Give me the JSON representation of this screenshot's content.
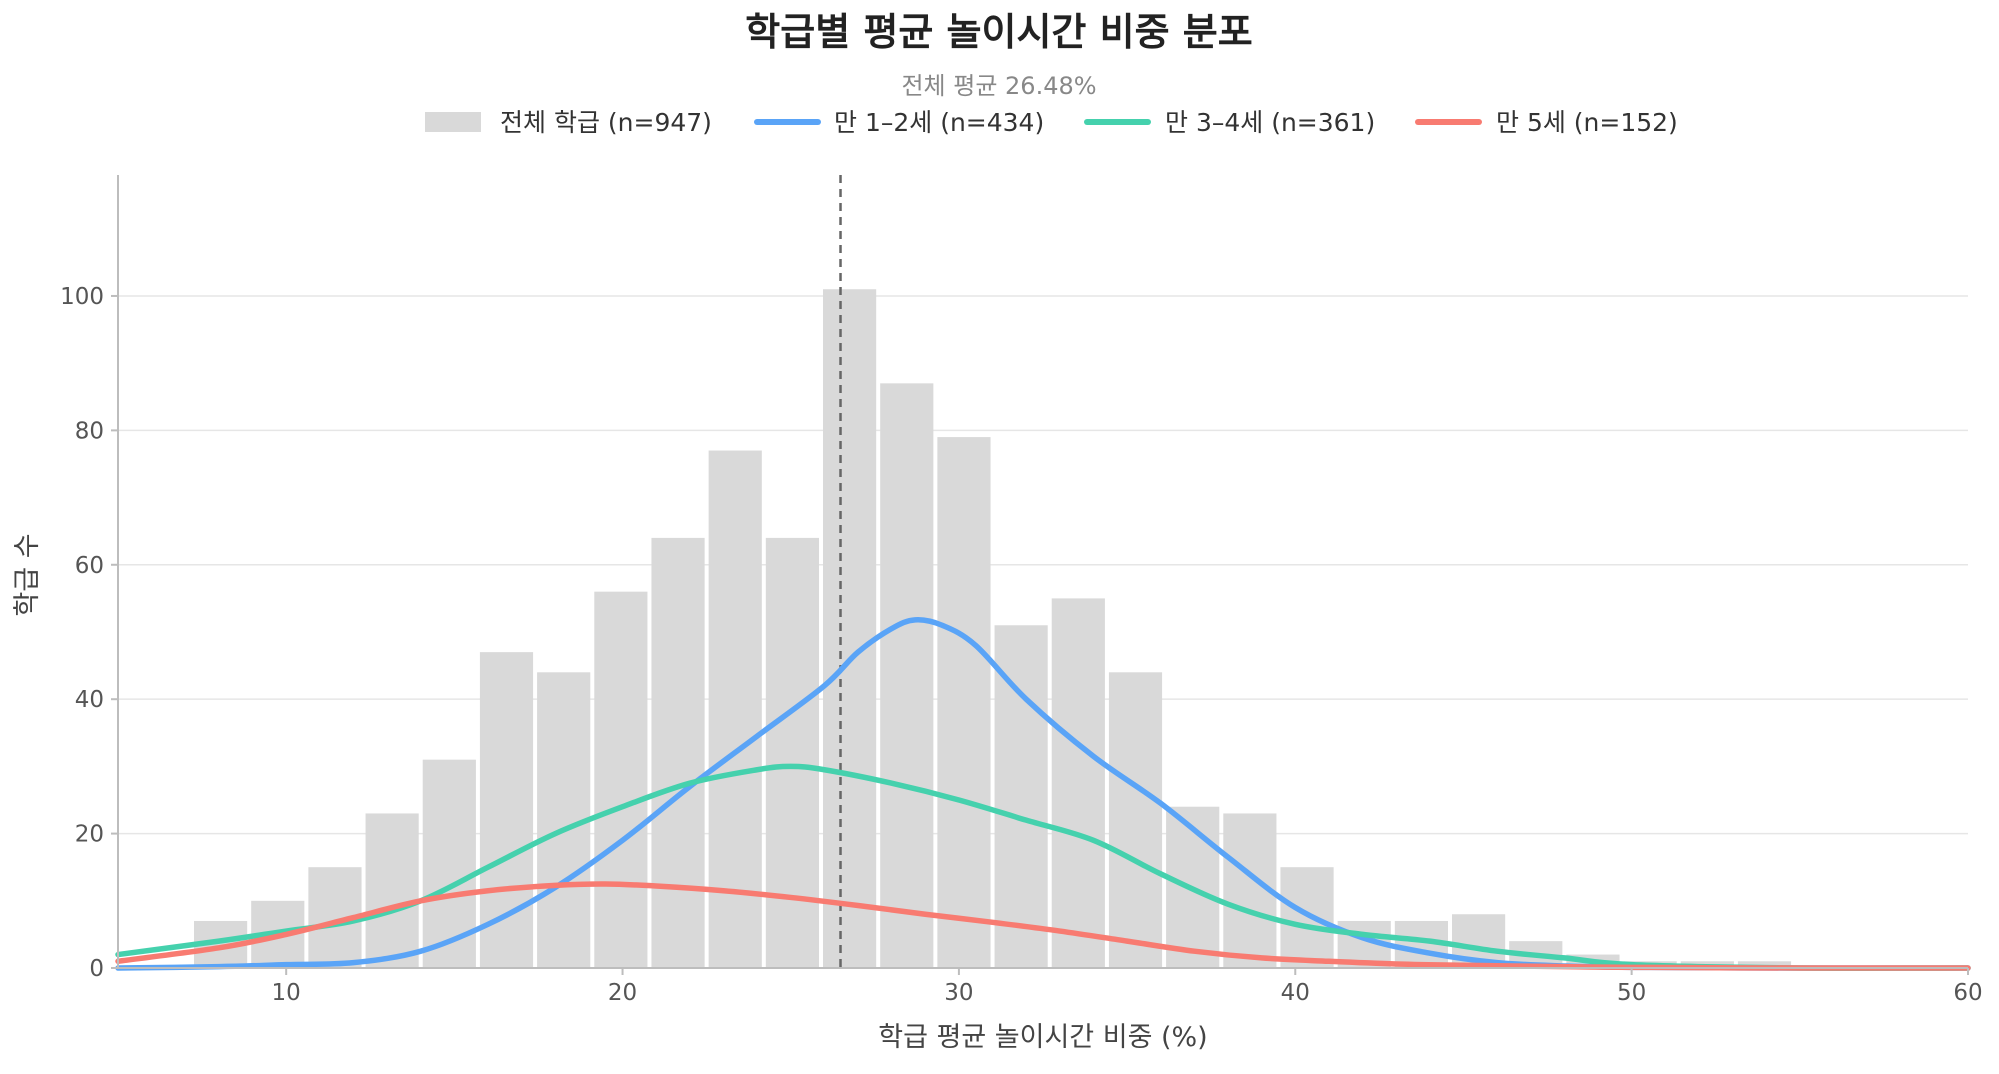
{
  "chart_data": {
    "type": "bar",
    "title": "학급별 평균 놀이시간 비중 분포",
    "subtitle": "전체 평균 26.48%",
    "xlabel": "학급 평균 놀이시간 비중 (%)",
    "ylabel": "학급 수",
    "xlim": [
      5,
      60
    ],
    "ylim": [
      0,
      118
    ],
    "xticks": [
      10,
      20,
      30,
      40,
      50,
      60
    ],
    "yticks": [
      0,
      20,
      40,
      60,
      80,
      100
    ],
    "grid": "horizontal",
    "legend_position": "top-center",
    "mean_line": 26.48,
    "histogram": {
      "name": "전체 학급 (n=947)",
      "color": "#d9d9d9",
      "bin_width": 1.7,
      "bins": [
        {
          "x_start": 7.2,
          "count": 7
        },
        {
          "x_start": 8.9,
          "count": 10
        },
        {
          "x_start": 10.6,
          "count": 15
        },
        {
          "x_start": 12.3,
          "count": 23
        },
        {
          "x_start": 14.0,
          "count": 31
        },
        {
          "x_start": 15.7,
          "count": 47
        },
        {
          "x_start": 17.4,
          "count": 44
        },
        {
          "x_start": 19.1,
          "count": 56
        },
        {
          "x_start": 20.8,
          "count": 64
        },
        {
          "x_start": 22.5,
          "count": 77
        },
        {
          "x_start": 24.2,
          "count": 64
        },
        {
          "x_start": 25.9,
          "count": 101
        },
        {
          "x_start": 27.6,
          "count": 87
        },
        {
          "x_start": 29.3,
          "count": 79
        },
        {
          "x_start": 31.0,
          "count": 51
        },
        {
          "x_start": 32.7,
          "count": 55
        },
        {
          "x_start": 34.4,
          "count": 44
        },
        {
          "x_start": 36.1,
          "count": 24
        },
        {
          "x_start": 37.8,
          "count": 23
        },
        {
          "x_start": 39.5,
          "count": 15
        },
        {
          "x_start": 41.2,
          "count": 7
        },
        {
          "x_start": 42.9,
          "count": 7
        },
        {
          "x_start": 44.6,
          "count": 8
        },
        {
          "x_start": 46.3,
          "count": 4
        },
        {
          "x_start": 48.0,
          "count": 2
        },
        {
          "x_start": 49.7,
          "count": 1
        },
        {
          "x_start": 51.4,
          "count": 1
        },
        {
          "x_start": 53.1,
          "count": 1
        }
      ]
    },
    "series": [
      {
        "name": "만 1–2세 (n=434)",
        "type": "line",
        "color": "#5aa4f7",
        "x": [
          5,
          8,
          10,
          12,
          14,
          16,
          18,
          20,
          22,
          24,
          26,
          27,
          28,
          28.7,
          29.5,
          30.5,
          32,
          34,
          36,
          38,
          40,
          42,
          44,
          46,
          48,
          50,
          55,
          60
        ],
        "y": [
          0,
          0.2,
          0.5,
          0.8,
          2.5,
          6.5,
          12,
          19,
          27,
          34.5,
          42,
          47,
          50.5,
          51.8,
          51,
          48,
          40,
          31.5,
          24.5,
          16.5,
          9,
          4.5,
          2.2,
          0.8,
          0.3,
          0.1,
          0,
          0
        ]
      },
      {
        "name": "만 3–4세 (n=361)",
        "type": "line",
        "color": "#45d1ad",
        "x": [
          5,
          8,
          10,
          12,
          14,
          16,
          18,
          20,
          22,
          24,
          25,
          26,
          28,
          30,
          32,
          34,
          36,
          38,
          40,
          42,
          44,
          46,
          48,
          50,
          55,
          60
        ],
        "y": [
          2,
          4,
          5.5,
          7,
          10,
          15,
          20,
          24,
          27.5,
          29.5,
          30,
          29.5,
          27.5,
          25,
          22,
          19,
          14,
          9.5,
          6.5,
          5,
          4,
          2.5,
          1.5,
          0.5,
          0,
          0
        ]
      },
      {
        "name": "만 5세 (n=152)",
        "type": "line",
        "color": "#f87b71",
        "x": [
          5,
          8,
          10,
          12,
          14,
          16,
          18,
          19.5,
          21,
          23,
          25,
          27,
          29,
          31,
          33,
          35,
          37,
          39,
          41,
          43,
          45,
          48,
          50,
          55,
          60
        ],
        "y": [
          1,
          3,
          5,
          7.5,
          10,
          11.5,
          12.3,
          12.5,
          12.2,
          11.5,
          10.5,
          9.3,
          8,
          6.8,
          5.5,
          4,
          2.5,
          1.5,
          1,
          0.6,
          0.4,
          0.2,
          0.1,
          0,
          0
        ]
      }
    ]
  }
}
